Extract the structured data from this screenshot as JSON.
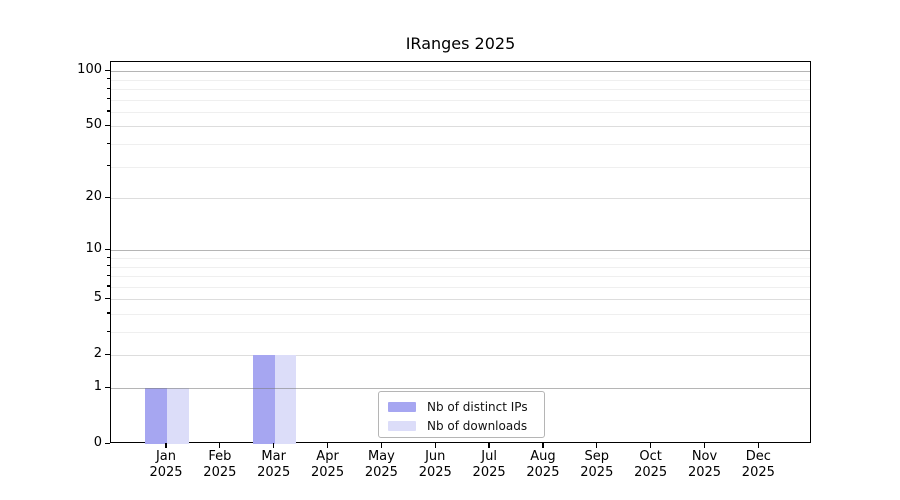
{
  "title": "IRanges 2025",
  "legend": {
    "items": [
      {
        "label": "Nb of distinct IPs",
        "color": "#a6a6f1"
      },
      {
        "label": "Nb of downloads",
        "color": "#dcddf9"
      }
    ]
  },
  "axes": {
    "y": {
      "major_ticks": [
        100,
        50,
        20,
        10,
        5,
        2,
        1,
        0
      ],
      "minor_ticks": [
        90,
        80,
        70,
        60,
        40,
        30,
        9,
        8,
        7,
        6,
        4,
        3
      ],
      "emphasized_gridlines": [
        100,
        10,
        1
      ]
    },
    "x": {
      "months": [
        "Jan",
        "Feb",
        "Mar",
        "Apr",
        "May",
        "Jun",
        "Jul",
        "Aug",
        "Sep",
        "Oct",
        "Nov",
        "Dec"
      ],
      "year": "2025"
    }
  },
  "chart_data": {
    "type": "bar",
    "title": "IRanges 2025",
    "categories": [
      "Jan 2025",
      "Feb 2025",
      "Mar 2025",
      "Apr 2025",
      "May 2025",
      "Jun 2025",
      "Jul 2025",
      "Aug 2025",
      "Sep 2025",
      "Oct 2025",
      "Nov 2025",
      "Dec 2025"
    ],
    "series": [
      {
        "name": "Nb of distinct IPs",
        "color": "#a6a6f1",
        "values": [
          1,
          0,
          2,
          0,
          0,
          0,
          0,
          0,
          0,
          0,
          0,
          0
        ]
      },
      {
        "name": "Nb of downloads",
        "color": "#dcddf9",
        "values": [
          1,
          0,
          2,
          0,
          0,
          0,
          0,
          0,
          0,
          0,
          0,
          0
        ]
      }
    ],
    "yscale": "log10(1+x)",
    "ytick_values": [
      0,
      1,
      2,
      5,
      10,
      20,
      50,
      100
    ],
    "ylim": [
      0,
      112
    ],
    "grid": true,
    "legend_position": "lower center"
  }
}
